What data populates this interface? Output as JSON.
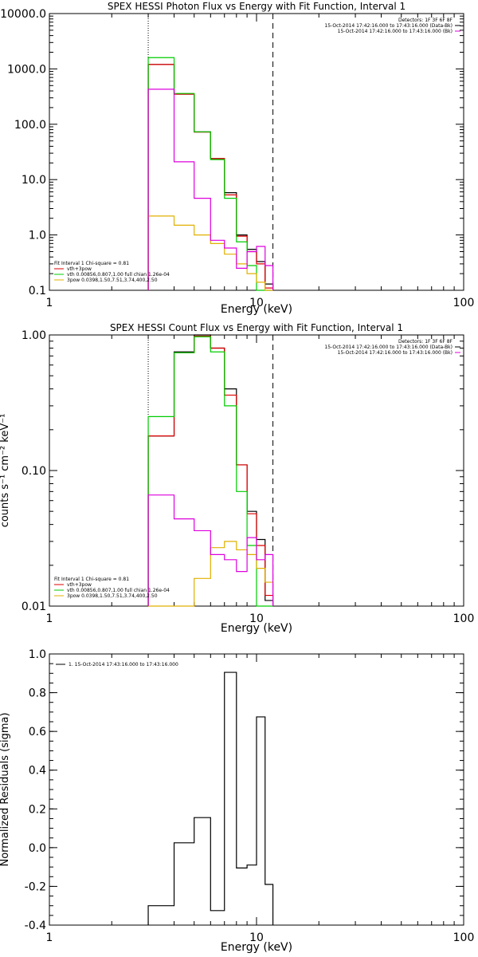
{
  "chart_data": [
    {
      "type": "line",
      "title": "SPEX HESSI Photon Flux vs Energy with Fit Function, Interval 1",
      "xlabel": "Energy (keV)",
      "ylabel": "",
      "xscale": "log",
      "yscale": "log",
      "xlim": [
        1,
        100
      ],
      "ylim": [
        0.1,
        10000
      ],
      "xticks": [
        {
          "v": 1,
          "label": "1"
        },
        {
          "v": 10,
          "label": "10"
        },
        {
          "v": 100,
          "label": "100"
        }
      ],
      "yticks": [
        {
          "v": 10000,
          "label": "10000.0"
        },
        {
          "v": 1000,
          "label": "1000.0"
        },
        {
          "v": 100,
          "label": "100.0"
        },
        {
          "v": 10,
          "label": "10.0"
        },
        {
          "v": 1,
          "label": "1.0"
        },
        {
          "v": 0.1,
          "label": "0.1"
        }
      ],
      "vlines": [
        {
          "x": 3,
          "style": "dotted"
        },
        {
          "x": 12,
          "style": "dashed"
        }
      ],
      "info_box": [
        "Detectors: 1F 3F 6F 8F",
        "15-Oct-2014 17:42:16.000 to 17:43:16.000 (Data-Bk)",
        "15-Oct-2014 17:42:16.000 to 17:43:16.000 (Bk)"
      ],
      "info_colors": [
        "#000000",
        "#000000",
        "#dd00dd"
      ],
      "fit_legend": [
        "Fit Interval 1    Chi-square = 0.81",
        "vth+3pow",
        "vth 0.00856,0.807,1.00  full chian 1.26e-04",
        "3pow 0.0398,1.50,7.51,3.74,400,2.50"
      ],
      "fit_colors": [
        "",
        "#dd0000",
        "#00cc00",
        "#e0b000"
      ],
      "edges": [
        3,
        4,
        5,
        6,
        7,
        8,
        9,
        10,
        11,
        12
      ],
      "series": [
        {
          "color": "#000000",
          "values": [
            1200,
            350,
            73,
            24,
            5.8,
            1.0,
            0.55,
            0.33,
            0.13
          ]
        },
        {
          "color": "#dd0000",
          "values": [
            1200,
            350,
            72,
            24,
            5.3,
            0.95,
            0.5,
            0.3,
            0.11
          ]
        },
        {
          "color": "#00cc00",
          "values": [
            1600,
            360,
            73,
            23,
            4.6,
            0.75,
            0.28,
            0.1,
            0.1
          ]
        },
        {
          "color": "#e0b000",
          "values": [
            2.2,
            1.5,
            1.0,
            0.7,
            0.45,
            0.3,
            0.2,
            0.14,
            0.1
          ]
        },
        {
          "color": "#dd00dd",
          "values": [
            430,
            21,
            4.6,
            0.8,
            0.58,
            0.25,
            0.5,
            0.62,
            0.28
          ]
        }
      ]
    },
    {
      "type": "line",
      "title": "SPEX HESSI Count Flux vs Energy with Fit Function, Interval 1",
      "xlabel": "Energy (keV)",
      "ylabel": "counts s⁻¹ cm⁻² keV⁻¹",
      "xscale": "log",
      "yscale": "log",
      "xlim": [
        1,
        100
      ],
      "ylim": [
        0.01,
        1.0
      ],
      "xticks": [
        {
          "v": 1,
          "label": "1"
        },
        {
          "v": 10,
          "label": "10"
        },
        {
          "v": 100,
          "label": "100"
        }
      ],
      "yticks": [
        {
          "v": 1,
          "label": "1.00"
        },
        {
          "v": 0.1,
          "label": "0.10"
        },
        {
          "v": 0.01,
          "label": "0.01"
        }
      ],
      "vlines": [
        {
          "x": 3,
          "style": "dotted"
        },
        {
          "x": 12,
          "style": "dashed"
        }
      ],
      "info_box": [
        "Detectors: 1F 3F 6F 8F",
        "15-Oct-2014 17:42:16.000 to 17:43:16.000 (Data-Bk)",
        "15-Oct-2014 17:42:16.000 to 17:43:16.000 (Bk)"
      ],
      "info_colors": [
        "#000000",
        "#000000",
        "#dd00dd"
      ],
      "fit_legend": [
        "Fit Interval 1    Chi-square = 0.81",
        "vth+3pow",
        "vth 0.00856,0.807,1.00  full chian 1.26e-04",
        "3pow 0.0398,1.50,7.51,3.74,400,2.50"
      ],
      "fit_colors": [
        "",
        "#dd0000",
        "#00cc00",
        "#e0b000"
      ],
      "edges": [
        3,
        4,
        5,
        6,
        7,
        8,
        9,
        10,
        11,
        12
      ],
      "series": [
        {
          "color": "#000000",
          "values": [
            0.18,
            0.75,
            1.0,
            0.8,
            0.4,
            0.11,
            0.05,
            0.031,
            0.011
          ]
        },
        {
          "color": "#dd0000",
          "values": [
            0.18,
            0.74,
            0.98,
            0.8,
            0.36,
            0.11,
            0.048,
            0.028,
            0.012
          ]
        },
        {
          "color": "#00cc00",
          "values": [
            0.25,
            0.74,
            0.97,
            0.75,
            0.3,
            0.07,
            0.028,
            0.01,
            0.01
          ]
        },
        {
          "color": "#e0b000",
          "values": [
            0.01,
            0.01,
            0.016,
            0.027,
            0.03,
            0.026,
            0.024,
            0.019,
            0.015
          ]
        },
        {
          "color": "#dd00dd",
          "values": [
            0.066,
            0.044,
            0.036,
            0.024,
            0.022,
            0.018,
            0.032,
            0.022,
            0.024
          ]
        }
      ]
    },
    {
      "type": "line",
      "title": "",
      "xlabel": "Energy (keV)",
      "ylabel": "Normalized Residuals (sigma)",
      "xscale": "log",
      "yscale": "linear",
      "xlim": [
        1,
        100
      ],
      "ylim": [
        -0.4,
        1.0
      ],
      "xticks": [
        {
          "v": 1,
          "label": "1"
        },
        {
          "v": 10,
          "label": "10"
        },
        {
          "v": 100,
          "label": "100"
        }
      ],
      "yticks": [
        {
          "v": 1.0,
          "label": "1.0"
        },
        {
          "v": 0.8,
          "label": "0.8"
        },
        {
          "v": 0.6,
          "label": "0.6"
        },
        {
          "v": 0.4,
          "label": "0.4"
        },
        {
          "v": 0.2,
          "label": "0.2"
        },
        {
          "v": 0.0,
          "label": "0.0"
        },
        {
          "v": -0.2,
          "label": "-0.2"
        },
        {
          "v": -0.4,
          "label": "-0.4"
        }
      ],
      "legend": [
        "1. 15-Oct-2014 17:43:16.000 to 17:43:16.000"
      ],
      "edges": [
        3,
        4,
        5,
        6,
        7,
        8,
        9,
        10,
        11,
        12
      ],
      "series": [
        {
          "color": "#000000",
          "values": [
            -0.3,
            0.025,
            0.155,
            -0.325,
            0.905,
            -0.105,
            -0.09,
            0.675,
            -0.19
          ]
        }
      ]
    }
  ]
}
